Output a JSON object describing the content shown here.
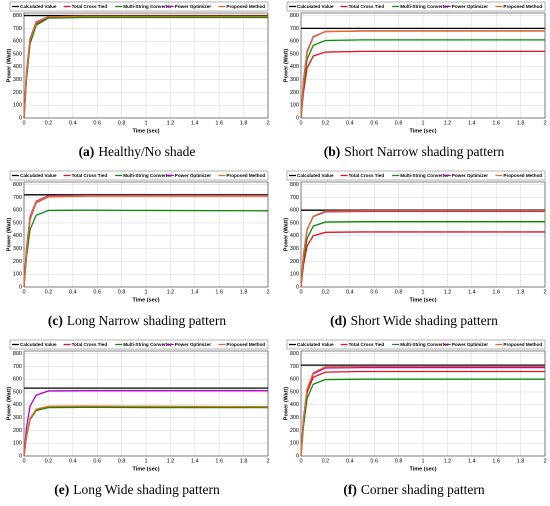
{
  "chart_data": [
    {
      "type": "line",
      "caption_label": "(a)",
      "caption": "Healthy/No shade",
      "xlabel": "Time (sec)",
      "ylabel": "Power (Watt)",
      "x": [
        0,
        0.02,
        0.05,
        0.1,
        0.2,
        0.5,
        1,
        2
      ],
      "xlim": [
        0,
        2
      ],
      "xticks": [
        0,
        0.2,
        0.4,
        0.6,
        0.8,
        1,
        1.2,
        1.4,
        1.6,
        1.8,
        2
      ],
      "ylim": [
        0,
        820
      ],
      "yticks": [
        0,
        100,
        200,
        300,
        400,
        500,
        600,
        700,
        800
      ],
      "grid": true,
      "series": [
        {
          "name": "Calculated Value",
          "color": "#000000",
          "values": [
            800,
            800,
            800,
            800,
            800,
            800,
            800,
            800
          ]
        },
        {
          "name": "Total Cross Tied",
          "color": "#e8101e",
          "values": [
            0,
            316,
            593,
            735,
            785,
            790,
            790,
            790
          ]
        },
        {
          "name": "Multi-String Converter",
          "color": "#0a8a0a",
          "values": [
            0,
            300,
            580,
            725,
            780,
            785,
            785,
            785
          ]
        },
        {
          "name": "Power Optimizer",
          "color": "#b400c8",
          "values": [
            0,
            360,
            620,
            750,
            792,
            795,
            795,
            795
          ]
        },
        {
          "name": "Proposed Method",
          "color": "#e07020",
          "values": [
            0,
            340,
            610,
            745,
            790,
            795,
            795,
            795
          ]
        }
      ]
    },
    {
      "type": "line",
      "caption_label": "(b)",
      "caption": "Short Narrow shading pattern",
      "xlabel": "Time (sec)",
      "ylabel": "Power (Watt)",
      "x": [
        0,
        0.02,
        0.05,
        0.1,
        0.2,
        0.5,
        1,
        2
      ],
      "xlim": [
        0,
        2
      ],
      "xticks": [
        0,
        0.2,
        0.4,
        0.6,
        0.8,
        1,
        1.2,
        1.4,
        1.6,
        1.8,
        2
      ],
      "ylim": [
        0,
        820
      ],
      "yticks": [
        0,
        100,
        200,
        300,
        400,
        500,
        600,
        700,
        800
      ],
      "grid": true,
      "series": [
        {
          "name": "Calculated Value",
          "color": "#000000",
          "values": [
            700,
            700,
            700,
            700,
            700,
            700,
            700,
            700
          ]
        },
        {
          "name": "Total Cross Tied",
          "color": "#e8101e",
          "values": [
            0,
            200,
            390,
            484,
            515,
            520,
            520,
            520
          ]
        },
        {
          "name": "Multi-String Converter",
          "color": "#0a8a0a",
          "values": [
            0,
            240,
            458,
            567,
            605,
            610,
            610,
            610
          ]
        },
        {
          "name": "Power Optimizer",
          "color": "#b400c8",
          "values": [
            0,
            290,
            520,
            635,
            675,
            680,
            680,
            680
          ]
        },
        {
          "name": "Proposed Method",
          "color": "#e07020",
          "values": [
            0,
            270,
            510,
            630,
            675,
            680,
            680,
            680
          ]
        }
      ]
    },
    {
      "type": "line",
      "caption_label": "(c)",
      "caption": "Long Narrow shading pattern",
      "xlabel": "Time (sec)",
      "ylabel": "Power (Watt)",
      "x": [
        0,
        0.02,
        0.05,
        0.1,
        0.2,
        0.5,
        1,
        2
      ],
      "xlim": [
        0,
        2
      ],
      "xticks": [
        0,
        0.2,
        0.4,
        0.6,
        0.8,
        1,
        1.2,
        1.4,
        1.6,
        1.8,
        2
      ],
      "ylim": [
        0,
        820
      ],
      "yticks": [
        0,
        100,
        200,
        300,
        400,
        500,
        600,
        700,
        800
      ],
      "grid": true,
      "series": [
        {
          "name": "Calculated Value",
          "color": "#000000",
          "values": [
            720,
            720,
            720,
            720,
            720,
            720,
            720,
            720
          ]
        },
        {
          "name": "Total Cross Tied",
          "color": "#e8101e",
          "values": [
            0,
            260,
            530,
            660,
            705,
            710,
            710,
            710
          ]
        },
        {
          "name": "Multi-String Converter",
          "color": "#0a8a0a",
          "values": [
            0,
            230,
            450,
            560,
            598,
            600,
            598,
            595
          ]
        },
        {
          "name": "Power Optimizer",
          "color": "#b400c8",
          "values": [
            0,
            300,
            550,
            670,
            712,
            715,
            715,
            715
          ]
        },
        {
          "name": "Proposed Method",
          "color": "#e07020",
          "values": [
            0,
            280,
            540,
            665,
            708,
            712,
            712,
            712
          ]
        }
      ]
    },
    {
      "type": "line",
      "caption_label": "(d)",
      "caption": "Short Wide shading pattern",
      "xlabel": "Time (sec)",
      "ylabel": "Power (Watt)",
      "x": [
        0,
        0.02,
        0.05,
        0.1,
        0.2,
        0.5,
        1,
        2
      ],
      "xlim": [
        0,
        2
      ],
      "xticks": [
        0,
        0.2,
        0.4,
        0.6,
        0.8,
        1,
        1.2,
        1.4,
        1.6,
        1.8,
        2
      ],
      "ylim": [
        0,
        820
      ],
      "yticks": [
        0,
        100,
        200,
        300,
        400,
        500,
        600,
        700,
        800
      ],
      "grid": true,
      "series": [
        {
          "name": "Calculated Value",
          "color": "#000000",
          "values": [
            600,
            600,
            600,
            600,
            600,
            600,
            600,
            600
          ]
        },
        {
          "name": "Total Cross Tied",
          "color": "#e8101e",
          "values": [
            0,
            170,
            320,
            400,
            427,
            430,
            430,
            430
          ]
        },
        {
          "name": "Multi-String Converter",
          "color": "#0a8a0a",
          "values": [
            0,
            200,
            380,
            475,
            507,
            510,
            510,
            510
          ]
        },
        {
          "name": "Power Optimizer",
          "color": "#b400c8",
          "values": [
            0,
            250,
            450,
            550,
            587,
            590,
            590,
            590
          ]
        },
        {
          "name": "Proposed Method",
          "color": "#e07020",
          "values": [
            0,
            240,
            445,
            553,
            592,
            595,
            595,
            595
          ]
        }
      ]
    },
    {
      "type": "line",
      "caption_label": "(e)",
      "caption": "Long Wide shading pattern",
      "xlabel": "Time (sec)",
      "ylabel": "Power (Watt)",
      "x": [
        0,
        0.02,
        0.05,
        0.1,
        0.2,
        0.5,
        1,
        2
      ],
      "xlim": [
        0,
        2
      ],
      "xticks": [
        0,
        0.2,
        0.4,
        0.6,
        0.8,
        1,
        1.2,
        1.4,
        1.6,
        1.8,
        2
      ],
      "ylim": [
        0,
        820
      ],
      "yticks": [
        0,
        100,
        200,
        300,
        400,
        500,
        600,
        700,
        800
      ],
      "grid": true,
      "series": [
        {
          "name": "Calculated Value",
          "color": "#000000",
          "values": [
            530,
            530,
            530,
            530,
            530,
            530,
            530,
            530
          ]
        },
        {
          "name": "Total Cross Tied",
          "color": "#e8101e",
          "values": [
            0,
            150,
            290,
            360,
            383,
            385,
            383,
            380
          ]
        },
        {
          "name": "Multi-String Converter",
          "color": "#0a8a0a",
          "values": [
            0,
            150,
            285,
            355,
            378,
            380,
            378,
            378
          ]
        },
        {
          "name": "Power Optimizer",
          "color": "#b400c8",
          "values": [
            0,
            220,
            390,
            475,
            508,
            510,
            510,
            510
          ]
        },
        {
          "name": "Proposed Method",
          "color": "#e07020",
          "values": [
            0,
            160,
            295,
            365,
            388,
            390,
            388,
            385
          ]
        }
      ]
    },
    {
      "type": "line",
      "caption_label": "(f)",
      "caption": "Corner shading pattern",
      "xlabel": "Time (sec)",
      "ylabel": "Power (Watt)",
      "x": [
        0,
        0.02,
        0.05,
        0.1,
        0.2,
        0.5,
        1,
        2
      ],
      "xlim": [
        0,
        2
      ],
      "xticks": [
        0,
        0.2,
        0.4,
        0.6,
        0.8,
        1,
        1.2,
        1.4,
        1.6,
        1.8,
        2
      ],
      "ylim": [
        0,
        820
      ],
      "yticks": [
        0,
        100,
        200,
        300,
        400,
        500,
        600,
        700,
        800
      ],
      "grid": true,
      "series": [
        {
          "name": "Calculated Value",
          "color": "#000000",
          "values": [
            710,
            710,
            710,
            710,
            710,
            710,
            710,
            710
          ]
        },
        {
          "name": "Total Cross Tied",
          "color": "#e8101e",
          "values": [
            0,
            260,
            495,
            615,
            655,
            660,
            660,
            660
          ]
        },
        {
          "name": "Multi-String Converter",
          "color": "#0a8a0a",
          "values": [
            0,
            230,
            450,
            560,
            597,
            600,
            600,
            600
          ]
        },
        {
          "name": "Power Optimizer",
          "color": "#b400c8",
          "values": [
            0,
            290,
            520,
            642,
            687,
            690,
            690,
            690
          ]
        },
        {
          "name": "Proposed Method",
          "color": "#e07020",
          "values": [
            0,
            280,
            525,
            650,
            697,
            700,
            700,
            700
          ]
        }
      ]
    }
  ]
}
